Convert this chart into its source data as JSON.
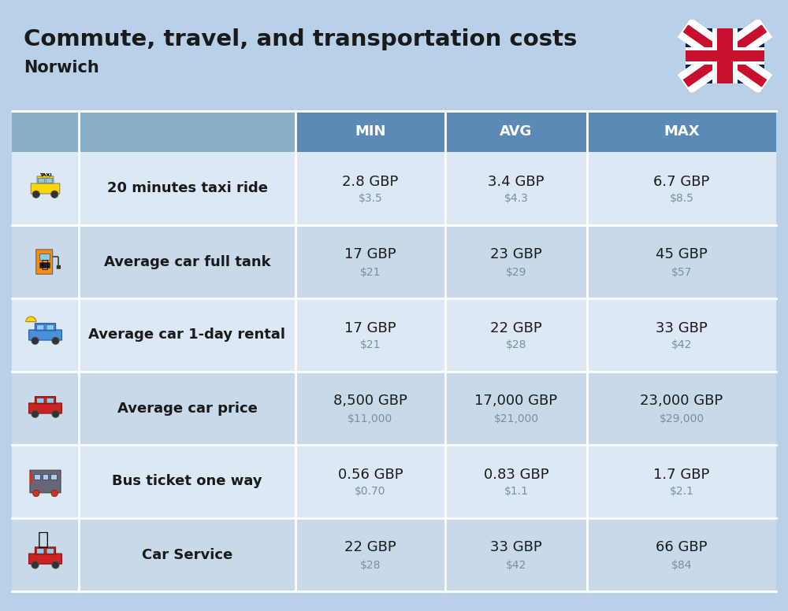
{
  "title": "Commute, travel, and transportation costs",
  "subtitle": "Norwich",
  "bg_top_color": "#b8d0e8",
  "bg_table_color": "#b8d0e8",
  "header_bg_color": "#5a8ab5",
  "header_text_color": "#ffffff",
  "row_colors": [
    "#dce8f3",
    "#c8d9ea"
  ],
  "col_headers": [
    "MIN",
    "AVG",
    "MAX"
  ],
  "rows": [
    {
      "label": "20 minutes taxi ride",
      "min_gbp": "2.8 GBP",
      "min_usd": "$3.5",
      "avg_gbp": "3.4 GBP",
      "avg_usd": "$4.3",
      "max_gbp": "6.7 GBP",
      "max_usd": "$8.5"
    },
    {
      "label": "Average car full tank",
      "min_gbp": "17 GBP",
      "min_usd": "$21",
      "avg_gbp": "23 GBP",
      "avg_usd": "$29",
      "max_gbp": "45 GBP",
      "max_usd": "$57"
    },
    {
      "label": "Average car 1-day rental",
      "min_gbp": "17 GBP",
      "min_usd": "$21",
      "avg_gbp": "22 GBP",
      "avg_usd": "$28",
      "max_gbp": "33 GBP",
      "max_usd": "$42"
    },
    {
      "label": "Average car price",
      "min_gbp": "8,500 GBP",
      "min_usd": "$11,000",
      "avg_gbp": "17,000 GBP",
      "avg_usd": "$21,000",
      "max_gbp": "23,000 GBP",
      "max_usd": "$29,000"
    },
    {
      "label": "Bus ticket one way",
      "min_gbp": "0.56 GBP",
      "min_usd": "$0.70",
      "avg_gbp": "0.83 GBP",
      "avg_usd": "$1.1",
      "max_gbp": "1.7 GBP",
      "max_usd": "$2.1"
    },
    {
      "label": "Car Service",
      "min_gbp": "22 GBP",
      "min_usd": "$28",
      "avg_gbp": "33 GBP",
      "avg_usd": "$42",
      "max_gbp": "66 GBP",
      "max_usd": "$84"
    }
  ],
  "title_fontsize": 21,
  "subtitle_fontsize": 15,
  "header_fontsize": 13,
  "label_fontsize": 13,
  "value_fontsize": 13,
  "usd_fontsize": 10,
  "divider_color": "#ffffff",
  "text_dark": "#1a1a1a",
  "text_usd": "#7a8fa0"
}
